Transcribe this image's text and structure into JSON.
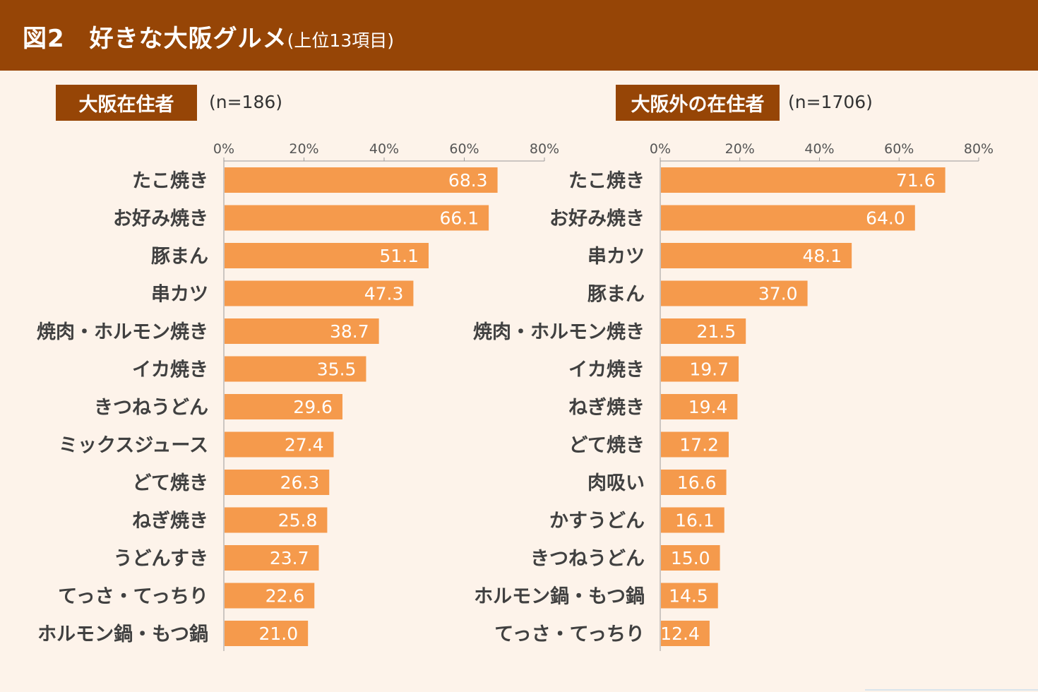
{
  "header": {
    "title": "図2　好きな大阪グルメ",
    "subtitle": "(上位13項目)"
  },
  "colors": {
    "header_bg": "#964506",
    "bar": "#f59a4c",
    "background": "#fdf3ea"
  },
  "chart_data": [
    {
      "type": "bar",
      "orientation": "horizontal",
      "panel_label": "大阪在住者",
      "n_label": "(n=186)",
      "xlim": [
        0,
        80
      ],
      "xticks": [
        "0%",
        "20%",
        "40%",
        "60%",
        "80%"
      ],
      "categories": [
        "たこ焼き",
        "お好み焼き",
        "豚まん",
        "串カツ",
        "焼肉・ホルモン焼き",
        "イカ焼き",
        "きつねうどん",
        "ミックスジュース",
        "どて焼き",
        "ねぎ焼き",
        "うどんすき",
        "てっさ・てっちり",
        "ホルモン鍋・もつ鍋"
      ],
      "values": [
        68.3,
        66.1,
        51.1,
        47.3,
        38.7,
        35.5,
        29.6,
        27.4,
        26.3,
        25.8,
        23.7,
        22.6,
        21.0
      ],
      "value_labels": [
        "68.3",
        "66.1",
        "51.1",
        "47.3",
        "38.7",
        "35.5",
        "29.6",
        "27.4",
        "26.3",
        "25.8",
        "23.7",
        "22.6",
        "21.0"
      ]
    },
    {
      "type": "bar",
      "orientation": "horizontal",
      "panel_label": "大阪外の在住者",
      "n_label": "(n=1706)",
      "xlim": [
        0,
        80
      ],
      "xticks": [
        "0%",
        "20%",
        "40%",
        "60%",
        "80%"
      ],
      "categories": [
        "たこ焼き",
        "お好み焼き",
        "串カツ",
        "豚まん",
        "焼肉・ホルモン焼き",
        "イカ焼き",
        "ねぎ焼き",
        "どて焼き",
        "肉吸い",
        "かすうどん",
        "きつねうどん",
        "ホルモン鍋・もつ鍋",
        "てっさ・てっちり"
      ],
      "values": [
        71.6,
        64.0,
        48.1,
        37.0,
        21.5,
        19.7,
        19.4,
        17.2,
        16.6,
        16.1,
        15.0,
        14.5,
        12.4
      ],
      "value_labels": [
        "71.6",
        "64.0",
        "48.1",
        "37.0",
        "21.5",
        "19.7",
        "19.4",
        "17.2",
        "16.6",
        "16.1",
        "15.0",
        "14.5",
        "12.4"
      ]
    }
  ]
}
